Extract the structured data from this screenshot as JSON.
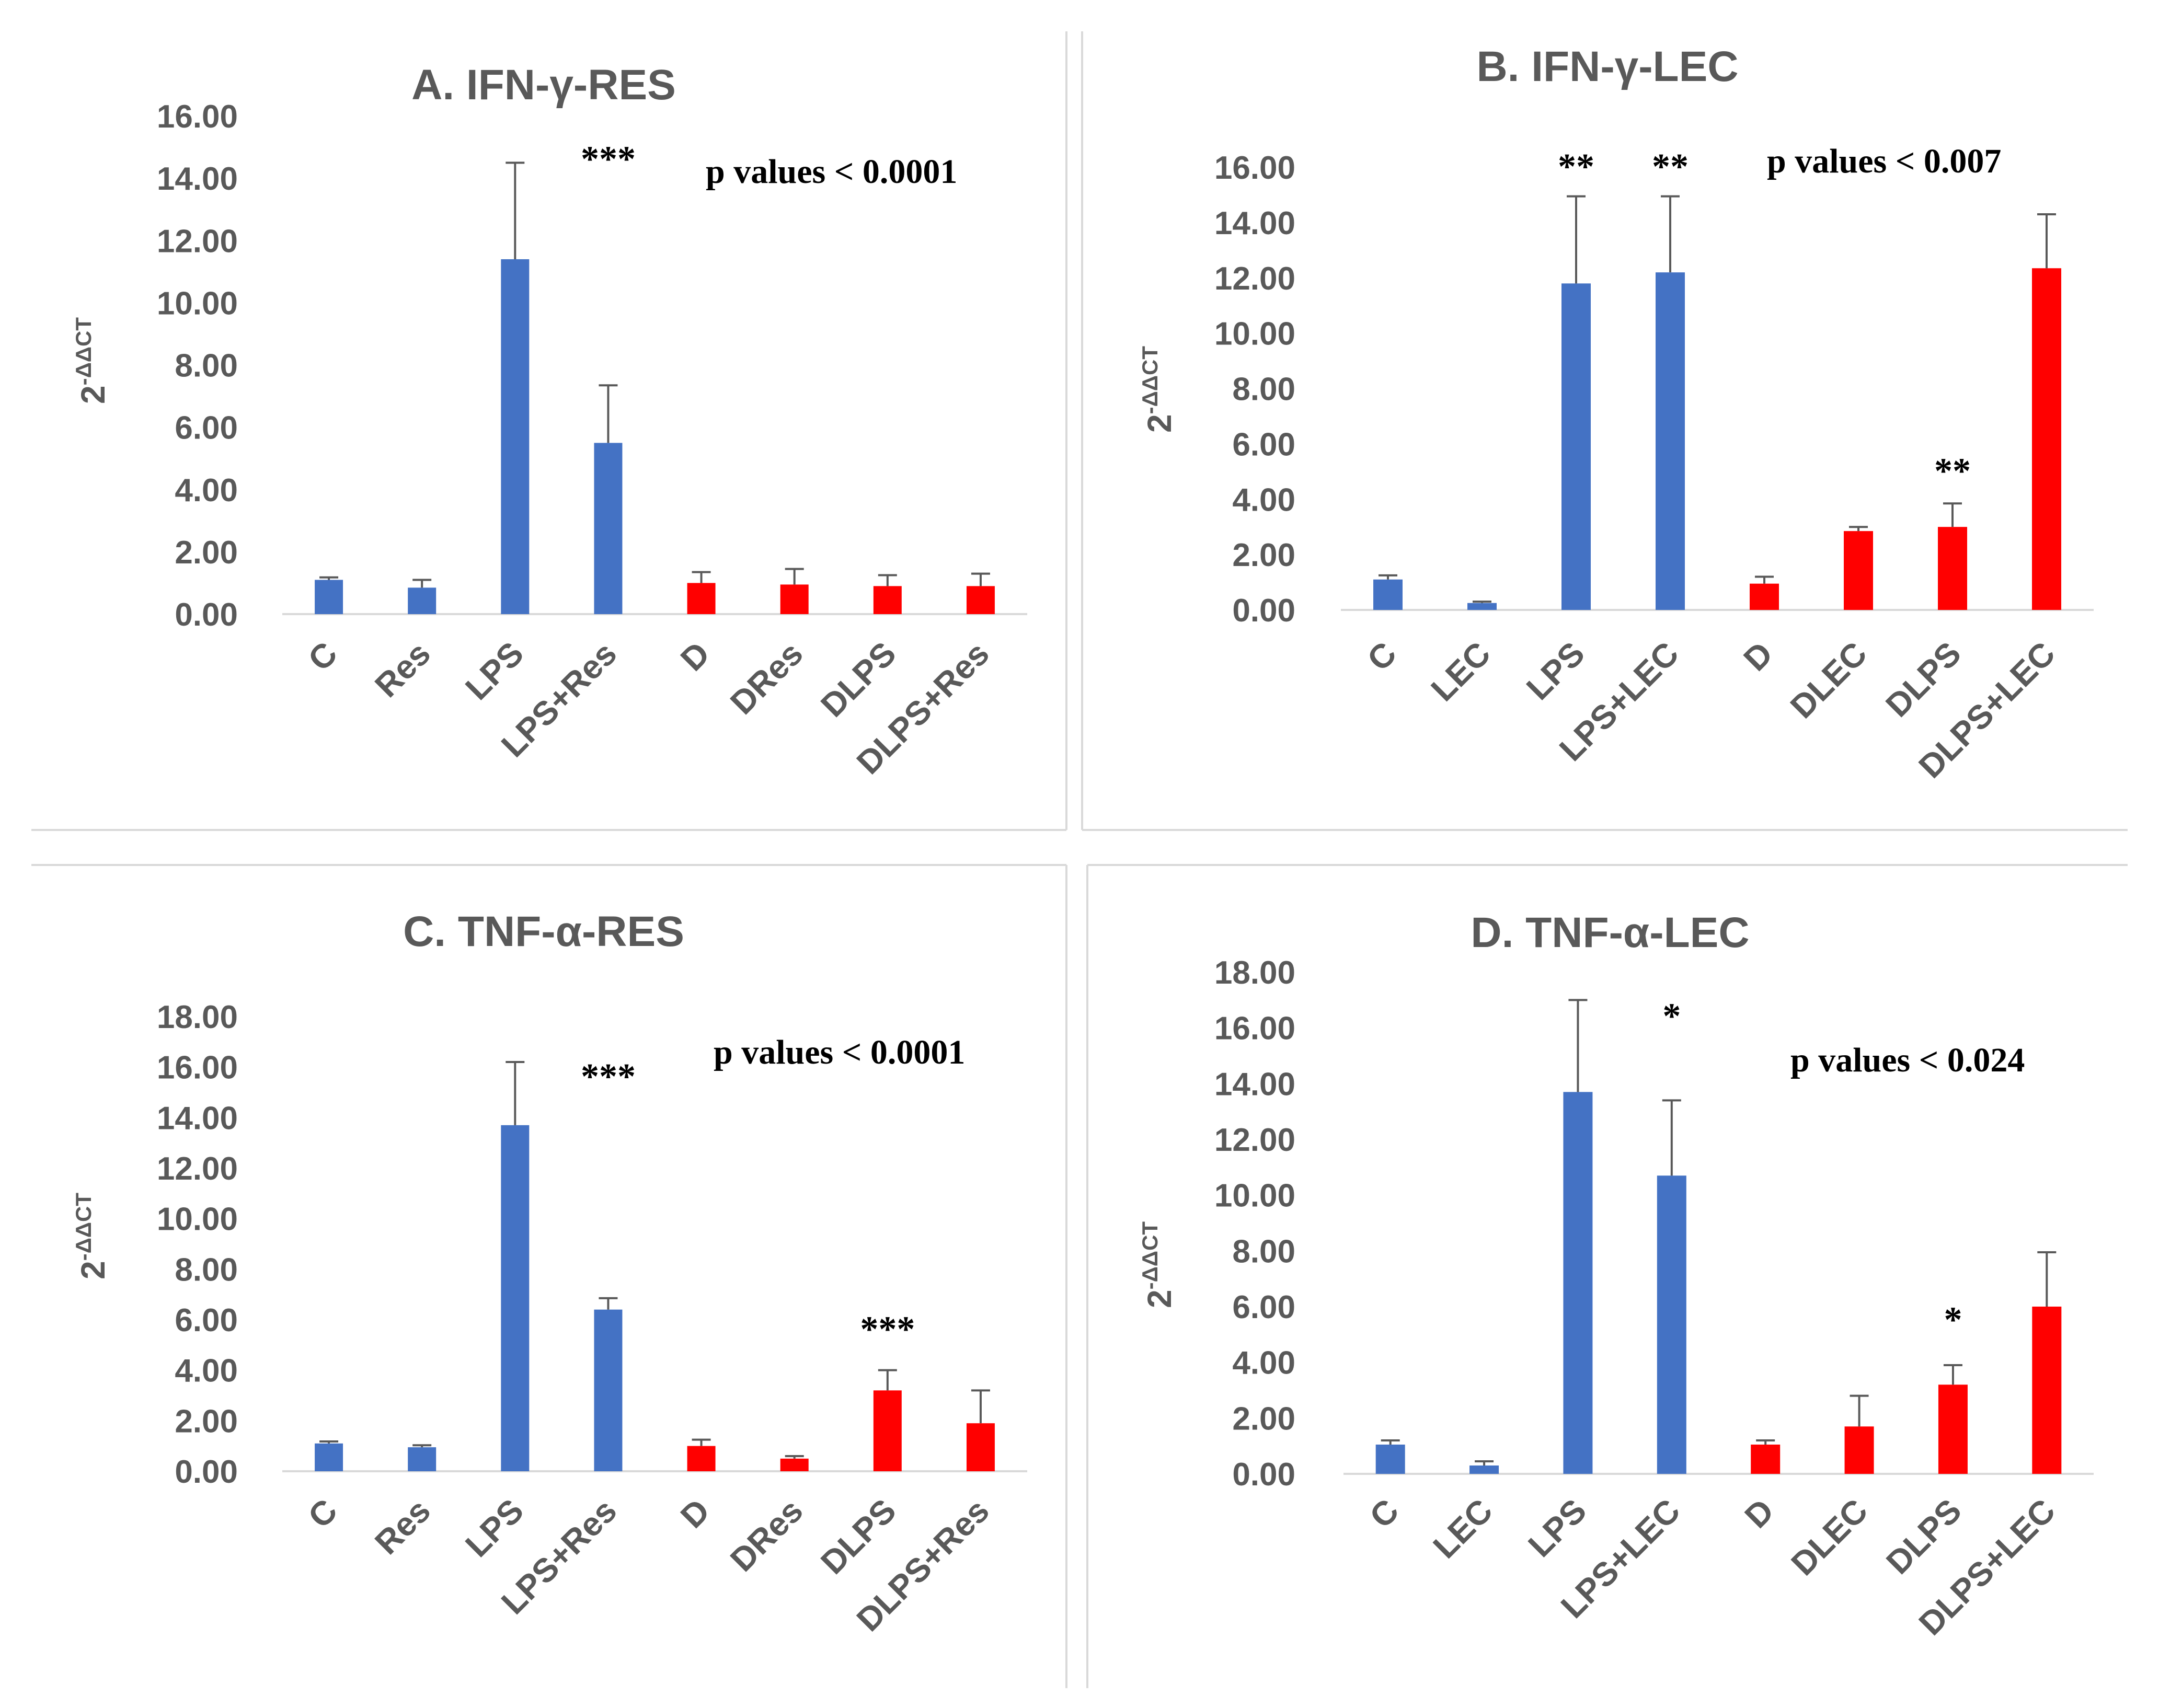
{
  "colors": {
    "control": "#4472C4",
    "diabetic": "#FF0000",
    "text": "#595959",
    "axis": "#d9d9d9"
  },
  "chart_data": [
    {
      "type": "bar",
      "title": "A. IFN-γ-RES",
      "ylabel": "2-ΔΔCT",
      "ylim": [
        0,
        16
      ],
      "ytick_step": 2,
      "ytick_labels": [
        "0.00",
        "2.00",
        "4.00",
        "6.00",
        "8.00",
        "10.00",
        "12.00",
        "14.00",
        "16.00"
      ],
      "categories": [
        "C",
        "Res",
        "LPS",
        "LPS+Res",
        "D",
        "DRes",
        "DLPS",
        "DLPS+Res"
      ],
      "values": [
        1.1,
        0.85,
        11.4,
        5.5,
        1.0,
        0.95,
        0.9,
        0.9
      ],
      "errors": [
        0.08,
        0.25,
        3.1,
        1.85,
        0.35,
        0.5,
        0.35,
        0.4
      ],
      "groups": [
        "control",
        "control",
        "control",
        "control",
        "diabetic",
        "diabetic",
        "diabetic",
        "diabetic"
      ],
      "significance": [
        {
          "label": "***",
          "category": "LPS+Res",
          "value": 14.6
        }
      ],
      "annotation": "p values < 0.0001"
    },
    {
      "type": "bar",
      "title": "B. IFN-γ-LEC",
      "ylabel": "2-ΔΔCT",
      "ylim": [
        0,
        16
      ],
      "ytick_step": 2,
      "ytick_labels": [
        "0.00",
        "2.00",
        "4.00",
        "6.00",
        "8.00",
        "10.00",
        "12.00",
        "14.00",
        "16.00"
      ],
      "categories": [
        "C",
        "LEC",
        "LPS",
        "LPS+LEC",
        "D",
        "DLEC",
        "DLPS",
        "DLPS+LEC"
      ],
      "values": [
        1.1,
        0.25,
        11.8,
        12.2,
        0.95,
        2.85,
        3.0,
        12.35
      ],
      "errors": [
        0.15,
        0.05,
        3.15,
        2.75,
        0.25,
        0.15,
        0.85,
        1.95
      ],
      "groups": [
        "control",
        "control",
        "control",
        "control",
        "diabetic",
        "diabetic",
        "diabetic",
        "diabetic"
      ],
      "significance": [
        {
          "label": "**",
          "category": "LPS",
          "value": 16.0
        },
        {
          "label": "**",
          "category": "LPS+LEC",
          "value": 16.0
        },
        {
          "label": "**",
          "category": "DLPS",
          "value": 5.0
        }
      ],
      "annotation": "p values < 0.007"
    },
    {
      "type": "bar",
      "title": "C. TNF-α-RES",
      "ylabel": "2-ΔΔCT",
      "ylim": [
        0,
        18
      ],
      "ytick_step": 2,
      "ytick_labels": [
        "0.00",
        "2.00",
        "4.00",
        "6.00",
        "8.00",
        "10.00",
        "12.00",
        "14.00",
        "16.00",
        "18.00"
      ],
      "categories": [
        "C",
        "Res",
        "LPS",
        "LPS+Res",
        "D",
        "DRes",
        "DLPS",
        "DLPS+Res"
      ],
      "values": [
        1.1,
        0.95,
        13.7,
        6.4,
        1.0,
        0.5,
        3.2,
        1.9
      ],
      "errors": [
        0.08,
        0.08,
        2.5,
        0.45,
        0.25,
        0.1,
        0.8,
        1.3
      ],
      "groups": [
        "control",
        "control",
        "control",
        "control",
        "diabetic",
        "diabetic",
        "diabetic",
        "diabetic"
      ],
      "significance": [
        {
          "label": "***",
          "category": "LPS+Res",
          "value": 15.6
        },
        {
          "label": "***",
          "category": "DLPS",
          "value": 5.6
        }
      ],
      "annotation": "p values < 0.0001"
    },
    {
      "type": "bar",
      "title": "D. TNF-α-LEC",
      "ylabel": "2-ΔΔCT",
      "ylim": [
        0,
        18
      ],
      "ytick_step": 2,
      "ytick_labels": [
        "0.00",
        "2.00",
        "4.00",
        "6.00",
        "8.00",
        "10.00",
        "12.00",
        "14.00",
        "16.00",
        "18.00"
      ],
      "categories": [
        "C",
        "LEC",
        "LPS",
        "LPS+LEC",
        "D",
        "DLEC",
        "DLPS",
        "DLPS+LEC"
      ],
      "values": [
        1.05,
        0.3,
        13.7,
        10.7,
        1.05,
        1.7,
        3.2,
        6.0
      ],
      "errors": [
        0.15,
        0.15,
        3.3,
        2.7,
        0.15,
        1.1,
        0.7,
        1.95
      ],
      "groups": [
        "control",
        "control",
        "control",
        "control",
        "diabetic",
        "diabetic",
        "diabetic",
        "diabetic"
      ],
      "significance": [
        {
          "label": "*",
          "category": "LPS+LEC",
          "value": 16.4
        },
        {
          "label": "*",
          "category": "DLPS",
          "value": 5.5
        }
      ],
      "annotation": "p values < 0.024"
    }
  ]
}
